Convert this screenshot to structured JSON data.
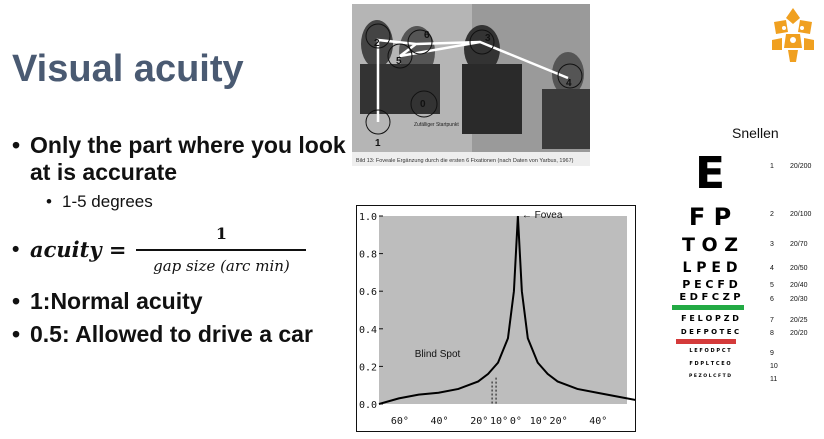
{
  "slide": {
    "title": "Visual acuity",
    "bullets": [
      {
        "text": "Only the part where you look at is accurate"
      },
      {
        "text": "1-5 degrees"
      },
      {
        "text": "1:Normal acuity"
      },
      {
        "text": "0.5: Allowed to drive a car"
      }
    ],
    "formula": {
      "lhs": "acuity =",
      "numerator": "1",
      "denominator": "gap size (arc min)"
    }
  },
  "photo": {
    "fixations": [
      "1",
      "2",
      "3",
      "4",
      "5",
      "6",
      "0"
    ],
    "start_label": "Zufälliger Startpunkt",
    "caption": "Bild 13: Foveale Ergänzung durch die ersten 6 Fixationen (nach Daten von Yarbus, 1967)"
  },
  "chart_data": {
    "type": "line",
    "annotations": [
      "← Fovea",
      "Blind Spot"
    ],
    "ylim": [
      0,
      1.0
    ],
    "yticks": [
      "1.0",
      "0.8",
      "0.6",
      "0.4",
      "0.2",
      "0.0"
    ],
    "xticks": [
      "60°",
      "40°",
      "20°",
      "10°",
      "0°",
      "10°",
      "20°",
      "40°"
    ],
    "x": [
      -70,
      -60,
      -50,
      -40,
      -30,
      -20,
      -15,
      -10,
      -5,
      -2,
      0,
      2,
      5,
      10,
      15,
      20,
      30,
      40,
      50,
      60
    ],
    "y": [
      0.0,
      0.03,
      0.05,
      0.06,
      0.08,
      0.12,
      0.16,
      0.22,
      0.35,
      0.6,
      1.0,
      0.6,
      0.35,
      0.22,
      0.16,
      0.12,
      0.08,
      0.06,
      0.04,
      0.02
    ]
  },
  "snellen": {
    "title": "Snellen",
    "rows": [
      {
        "letters": "E",
        "num": "1",
        "ratio": "20/200"
      },
      {
        "letters": "F P",
        "num": "2",
        "ratio": "20/100"
      },
      {
        "letters": "T O Z",
        "num": "3",
        "ratio": "20/70"
      },
      {
        "letters": "L P E D",
        "num": "4",
        "ratio": "20/50"
      },
      {
        "letters": "P E C F D",
        "num": "5",
        "ratio": "20/40"
      },
      {
        "letters": "E D F C Z P",
        "num": "6",
        "ratio": "20/30"
      },
      {
        "letters": "F E L O P Z D",
        "num": "7",
        "ratio": "20/25"
      },
      {
        "letters": "D E F P O T E C",
        "num": "8",
        "ratio": "20/20"
      },
      {
        "letters": "L E F O D P C T",
        "num": "9",
        "ratio": ""
      },
      {
        "letters": "F D P L T C E O",
        "num": "10",
        "ratio": ""
      },
      {
        "letters": "P E Z O L C F T D",
        "num": "11",
        "ratio": ""
      }
    ],
    "colors": {
      "green_bar": "#22aa44",
      "red_bar": "#d43a3a"
    }
  },
  "colors": {
    "title": "#4a5a72",
    "logo": "#f0a020"
  }
}
